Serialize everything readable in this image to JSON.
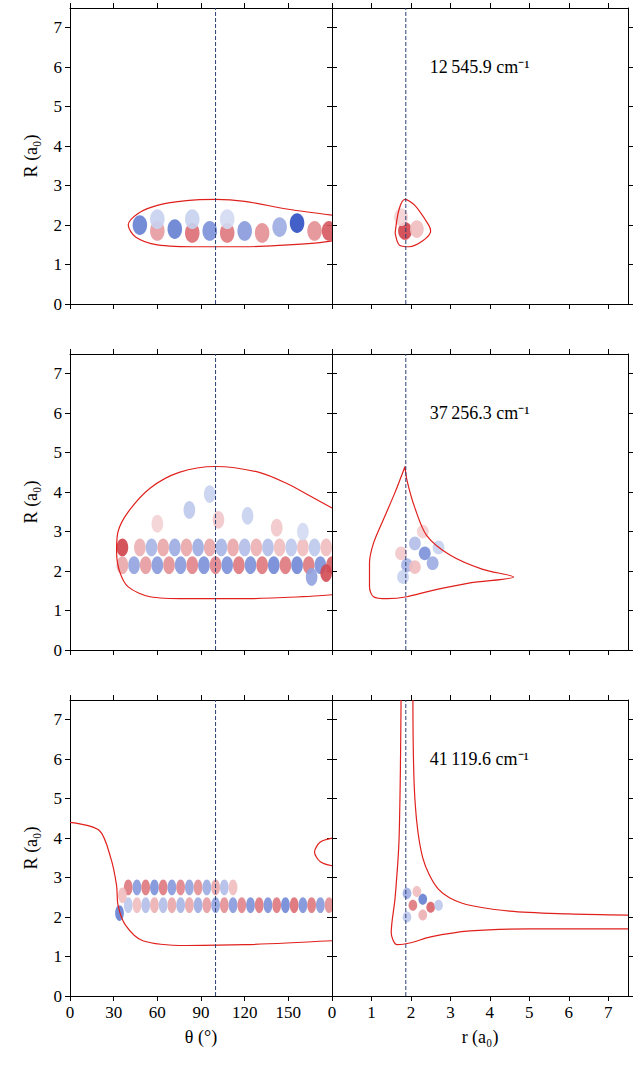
{
  "chart_data": [
    {
      "type": "heatmap",
      "ylabel": "R (a₀)",
      "tick_labels": "y",
      "xlim": [
        0,
        180
      ],
      "xticks": [
        0,
        30,
        60,
        90,
        120,
        150
      ],
      "ylim": [
        0,
        7.5
      ],
      "yticks": [
        0,
        1,
        2,
        3,
        4,
        5,
        6,
        7
      ],
      "reference_x": 100,
      "value_range": [
        -1,
        1
      ],
      "cell_width": 10,
      "cell_height": 0.5,
      "cells": [
        [
          48,
          2.0,
          -0.7
        ],
        [
          60,
          1.85,
          0.45
        ],
        [
          72,
          1.9,
          -0.7
        ],
        [
          84,
          1.8,
          0.65
        ],
        [
          96,
          1.85,
          -0.6
        ],
        [
          108,
          1.8,
          0.6
        ],
        [
          120,
          1.85,
          -0.55
        ],
        [
          132,
          1.8,
          0.5
        ],
        [
          144,
          1.95,
          -0.45
        ],
        [
          156,
          2.05,
          -0.95
        ],
        [
          168,
          1.85,
          0.5
        ],
        [
          178,
          1.85,
          0.75
        ],
        [
          60,
          2.15,
          -0.25
        ],
        [
          84,
          2.15,
          -0.25
        ],
        [
          108,
          2.15,
          -0.2
        ]
      ],
      "contours": [
        [
          [
            180,
            2.25
          ],
          [
            150,
            2.4
          ],
          [
            120,
            2.6
          ],
          [
            100,
            2.65
          ],
          [
            80,
            2.62
          ],
          [
            60,
            2.5
          ],
          [
            47,
            2.3
          ],
          [
            40,
            2.0
          ],
          [
            45,
            1.7
          ],
          [
            60,
            1.5
          ],
          [
            90,
            1.45
          ],
          [
            120,
            1.45
          ],
          [
            150,
            1.5
          ],
          [
            170,
            1.55
          ],
          [
            180,
            1.6
          ]
        ]
      ]
    },
    {
      "type": "heatmap",
      "tick_labels": false,
      "annotation": "12 545.9 cm⁻¹",
      "xlim": [
        0,
        7.5
      ],
      "xticks": [
        0,
        1,
        2,
        3,
        4,
        5,
        6,
        7
      ],
      "ylim": [
        0,
        7.5
      ],
      "yticks": [
        0,
        1,
        2,
        3,
        4,
        5,
        6,
        7
      ],
      "reference_x": 1.87,
      "value_range": [
        -1,
        1
      ],
      "cell_width": 0.35,
      "cell_height": 0.45,
      "cells": [
        [
          1.85,
          1.85,
          0.85
        ],
        [
          2.15,
          1.9,
          0.3
        ],
        [
          1.75,
          2.2,
          0.2
        ]
      ],
      "contours": [
        [
          [
            1.6,
            1.8
          ],
          [
            1.7,
            2.4
          ],
          [
            1.85,
            2.65
          ],
          [
            2.1,
            2.5
          ],
          [
            2.45,
            2.0
          ],
          [
            2.5,
            1.85
          ],
          [
            2.3,
            1.6
          ],
          [
            1.95,
            1.45
          ],
          [
            1.7,
            1.5
          ],
          [
            1.6,
            1.8
          ]
        ]
      ]
    },
    {
      "type": "heatmap",
      "ylabel": "R (a₀)",
      "tick_labels": "y",
      "xlim": [
        0,
        180
      ],
      "xticks": [
        0,
        30,
        60,
        90,
        120,
        150
      ],
      "ylim": [
        0,
        7.5
      ],
      "yticks": [
        0,
        1,
        2,
        3,
        4,
        5,
        6,
        7
      ],
      "reference_x": 100,
      "value_range": [
        -1,
        1
      ],
      "cell_width": 8,
      "cell_height": 0.45,
      "cells": [
        [
          44,
          2.15,
          -0.5
        ],
        [
          52,
          2.15,
          0.45
        ],
        [
          60,
          2.15,
          -0.55
        ],
        [
          68,
          2.15,
          0.5
        ],
        [
          76,
          2.15,
          -0.55
        ],
        [
          84,
          2.15,
          0.55
        ],
        [
          92,
          2.15,
          -0.6
        ],
        [
          100,
          2.15,
          0.55
        ],
        [
          108,
          2.15,
          -0.6
        ],
        [
          116,
          2.15,
          0.6
        ],
        [
          124,
          2.15,
          -0.6
        ],
        [
          132,
          2.15,
          0.6
        ],
        [
          140,
          2.15,
          -0.65
        ],
        [
          148,
          2.15,
          0.6
        ],
        [
          156,
          2.15,
          -0.65
        ],
        [
          164,
          2.15,
          0.6
        ],
        [
          172,
          2.15,
          -0.6
        ],
        [
          180,
          2.15,
          0.7
        ],
        [
          48,
          2.6,
          0.35
        ],
        [
          56,
          2.6,
          -0.4
        ],
        [
          64,
          2.6,
          0.4
        ],
        [
          72,
          2.6,
          -0.45
        ],
        [
          80,
          2.6,
          0.4
        ],
        [
          88,
          2.6,
          -0.45
        ],
        [
          96,
          2.6,
          0.4
        ],
        [
          104,
          2.6,
          -0.4
        ],
        [
          112,
          2.6,
          0.4
        ],
        [
          120,
          2.6,
          -0.35
        ],
        [
          128,
          2.6,
          0.35
        ],
        [
          136,
          2.6,
          -0.35
        ],
        [
          144,
          2.6,
          0.3
        ],
        [
          152,
          2.6,
          -0.3
        ],
        [
          160,
          2.6,
          0.3
        ],
        [
          168,
          2.6,
          -0.3
        ],
        [
          176,
          2.6,
          0.3
        ],
        [
          36,
          2.6,
          0.85
        ],
        [
          36,
          2.15,
          0.4
        ],
        [
          82,
          3.55,
          -0.3
        ],
        [
          102,
          3.3,
          0.25
        ],
        [
          122,
          3.4,
          -0.25
        ],
        [
          96,
          3.95,
          -0.25
        ],
        [
          142,
          3.1,
          0.25
        ],
        [
          160,
          3.0,
          -0.2
        ],
        [
          60,
          3.2,
          0.2
        ],
        [
          176,
          1.95,
          0.8
        ],
        [
          166,
          1.85,
          -0.5
        ]
      ],
      "contours": [
        [
          [
            180,
            3.6
          ],
          [
            165,
            3.9
          ],
          [
            150,
            4.2
          ],
          [
            130,
            4.5
          ],
          [
            100,
            4.65
          ],
          [
            75,
            4.5
          ],
          [
            55,
            4.1
          ],
          [
            40,
            3.5
          ],
          [
            33,
            3.0
          ],
          [
            32,
            2.5
          ],
          [
            34,
            2.0
          ],
          [
            40,
            1.6
          ],
          [
            55,
            1.35
          ],
          [
            80,
            1.3
          ],
          [
            120,
            1.3
          ],
          [
            160,
            1.35
          ],
          [
            180,
            1.4
          ]
        ]
      ]
    },
    {
      "type": "heatmap",
      "tick_labels": false,
      "annotation": "37 256.3 cm⁻¹",
      "xlim": [
        0,
        7.5
      ],
      "xticks": [
        0,
        1,
        2,
        3,
        4,
        5,
        6,
        7
      ],
      "ylim": [
        0,
        7.5
      ],
      "yticks": [
        0,
        1,
        2,
        3,
        4,
        5,
        6,
        7
      ],
      "reference_x": 1.87,
      "value_range": [
        -1,
        1
      ],
      "cell_width": 0.3,
      "cell_height": 0.35,
      "cells": [
        [
          2.35,
          2.45,
          -0.6
        ],
        [
          2.55,
          2.2,
          -0.45
        ],
        [
          2.1,
          2.7,
          -0.35
        ],
        [
          1.9,
          2.15,
          -0.4
        ],
        [
          2.1,
          2.1,
          0.3
        ],
        [
          1.75,
          2.45,
          0.25
        ],
        [
          2.7,
          2.6,
          -0.25
        ],
        [
          2.3,
          3.0,
          0.2
        ],
        [
          1.8,
          1.85,
          -0.25
        ]
      ],
      "contours": [
        [
          [
            1.85,
            4.65
          ],
          [
            1.6,
            4.0
          ],
          [
            1.3,
            3.3
          ],
          [
            1.05,
            2.7
          ],
          [
            0.95,
            2.2
          ],
          [
            0.95,
            1.6
          ],
          [
            1.05,
            1.35
          ],
          [
            1.4,
            1.3
          ],
          [
            1.9,
            1.35
          ],
          [
            2.5,
            1.5
          ],
          [
            3.5,
            1.7
          ],
          [
            4.6,
            1.85
          ],
          [
            3.8,
            2.05
          ],
          [
            3.0,
            2.4
          ],
          [
            2.4,
            2.9
          ],
          [
            2.1,
            3.6
          ],
          [
            1.9,
            4.3
          ],
          [
            1.85,
            4.65
          ]
        ]
      ]
    },
    {
      "type": "heatmap",
      "xlabel": "θ (°)",
      "ylabel": "R (a₀)",
      "tick_labels": true,
      "xlim": [
        0,
        180
      ],
      "xticks": [
        0,
        30,
        60,
        90,
        120,
        150
      ],
      "ylim": [
        0,
        7.5
      ],
      "yticks": [
        0,
        1,
        2,
        3,
        4,
        5,
        6,
        7
      ],
      "reference_x": 100,
      "value_range": [
        -1,
        1
      ],
      "cell_width": 6,
      "cell_height": 0.4,
      "cells": [
        [
          40,
          2.75,
          0.6
        ],
        [
          46,
          2.75,
          -0.55
        ],
        [
          52,
          2.75,
          0.6
        ],
        [
          58,
          2.75,
          -0.6
        ],
        [
          64,
          2.75,
          0.6
        ],
        [
          70,
          2.75,
          -0.55
        ],
        [
          76,
          2.75,
          0.55
        ],
        [
          82,
          2.75,
          -0.5
        ],
        [
          88,
          2.75,
          0.5
        ],
        [
          94,
          2.75,
          -0.45
        ],
        [
          100,
          2.75,
          0.4
        ],
        [
          106,
          2.75,
          -0.35
        ],
        [
          112,
          2.75,
          0.3
        ],
        [
          40,
          2.3,
          -0.3
        ],
        [
          46,
          2.3,
          0.3
        ],
        [
          52,
          2.3,
          -0.35
        ],
        [
          58,
          2.3,
          0.35
        ],
        [
          64,
          2.3,
          -0.35
        ],
        [
          70,
          2.3,
          0.4
        ],
        [
          76,
          2.3,
          -0.4
        ],
        [
          82,
          2.3,
          0.4
        ],
        [
          88,
          2.3,
          -0.45
        ],
        [
          94,
          2.3,
          0.45
        ],
        [
          100,
          2.3,
          -0.5
        ],
        [
          106,
          2.3,
          0.5
        ],
        [
          112,
          2.3,
          -0.55
        ],
        [
          118,
          2.3,
          0.55
        ],
        [
          124,
          2.3,
          -0.6
        ],
        [
          130,
          2.3,
          0.6
        ],
        [
          136,
          2.3,
          -0.6
        ],
        [
          142,
          2.3,
          0.6
        ],
        [
          148,
          2.3,
          -0.65
        ],
        [
          154,
          2.3,
          0.65
        ],
        [
          160,
          2.3,
          -0.6
        ],
        [
          166,
          2.3,
          0.6
        ],
        [
          172,
          2.3,
          -0.55
        ],
        [
          178,
          2.3,
          0.5
        ],
        [
          34,
          2.1,
          -0.7
        ],
        [
          36,
          2.55,
          0.3
        ]
      ],
      "contours": [
        [
          [
            0,
            4.4
          ],
          [
            20,
            4.2
          ],
          [
            28,
            3.5
          ],
          [
            32,
            2.8
          ],
          [
            33,
            2.3
          ],
          [
            38,
            1.8
          ],
          [
            50,
            1.4
          ],
          [
            80,
            1.28
          ],
          [
            120,
            1.3
          ],
          [
            180,
            1.4
          ]
        ],
        [
          [
            180,
            3.3
          ],
          [
            172,
            3.4
          ],
          [
            168,
            3.65
          ],
          [
            172,
            3.9
          ],
          [
            180,
            4.0
          ]
        ]
      ]
    },
    {
      "type": "heatmap",
      "xlabel": "r (a₀)",
      "tick_labels": "x",
      "annotation": "41 119.6 cm⁻¹",
      "xlim": [
        0,
        7.5
      ],
      "xticks": [
        0,
        1,
        2,
        3,
        4,
        5,
        6,
        7
      ],
      "ylim": [
        0,
        7.5
      ],
      "yticks": [
        0,
        1,
        2,
        3,
        4,
        5,
        6,
        7
      ],
      "reference_x": 1.87,
      "value_range": [
        -1,
        1
      ],
      "cell_width": 0.22,
      "cell_height": 0.28,
      "cells": [
        [
          1.9,
          2.6,
          -0.45
        ],
        [
          2.05,
          2.3,
          0.6
        ],
        [
          2.3,
          2.45,
          -0.7
        ],
        [
          2.5,
          2.25,
          0.7
        ],
        [
          2.3,
          2.05,
          0.35
        ],
        [
          1.9,
          2.0,
          -0.3
        ],
        [
          2.15,
          2.65,
          0.3
        ],
        [
          2.7,
          2.3,
          -0.3
        ]
      ],
      "contours": [
        [
          [
            1.75,
            7.5
          ],
          [
            1.7,
            4.0
          ],
          [
            1.6,
            2.5
          ],
          [
            1.5,
            1.6
          ],
          [
            1.65,
            1.3
          ],
          [
            2.0,
            1.35
          ],
          [
            2.5,
            1.5
          ],
          [
            3.5,
            1.65
          ],
          [
            5.0,
            1.7
          ],
          [
            7.5,
            1.7
          ]
        ],
        [
          [
            2.05,
            7.5
          ],
          [
            2.1,
            5.0
          ],
          [
            2.3,
            3.5
          ],
          [
            2.7,
            2.7
          ],
          [
            3.3,
            2.35
          ],
          [
            4.5,
            2.15
          ],
          [
            6.0,
            2.08
          ],
          [
            7.5,
            2.05
          ]
        ]
      ]
    }
  ]
}
